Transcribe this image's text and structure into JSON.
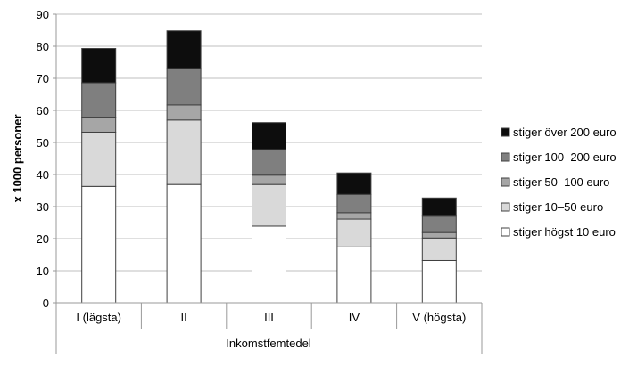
{
  "chart_data": {
    "type": "bar",
    "stacked": true,
    "title": "",
    "xlabel": "Inkomstfemtedel",
    "ylabel": "x 1000 personer",
    "ylim": [
      0,
      90
    ],
    "yticks": [
      0,
      10,
      20,
      30,
      40,
      50,
      60,
      70,
      80,
      90
    ],
    "grid": true,
    "legend_position": "right",
    "categories": [
      "I (lägsta)",
      "II",
      "III",
      "IV",
      "V (högsta)"
    ],
    "series": [
      {
        "name": "stiger högst 10 euro",
        "color": "#ffffff",
        "values": [
          36.3,
          36.9,
          23.9,
          17.4,
          13.2
        ]
      },
      {
        "name": "stiger 10–50 euro",
        "color": "#d9d9d9",
        "values": [
          16.9,
          20.1,
          13.0,
          8.7,
          7.0
        ]
      },
      {
        "name": "stiger 50–100 euro",
        "color": "#a6a6a6",
        "values": [
          4.7,
          4.7,
          2.9,
          2.0,
          1.7
        ]
      },
      {
        "name": "stiger 100–200 euro",
        "color": "#7f7f7f",
        "values": [
          10.7,
          11.4,
          8.0,
          5.7,
          5.1
        ]
      },
      {
        "name": "stiger över 200 euro",
        "color": "#0d0d0d",
        "values": [
          10.7,
          11.7,
          8.4,
          6.7,
          5.7
        ]
      }
    ]
  }
}
